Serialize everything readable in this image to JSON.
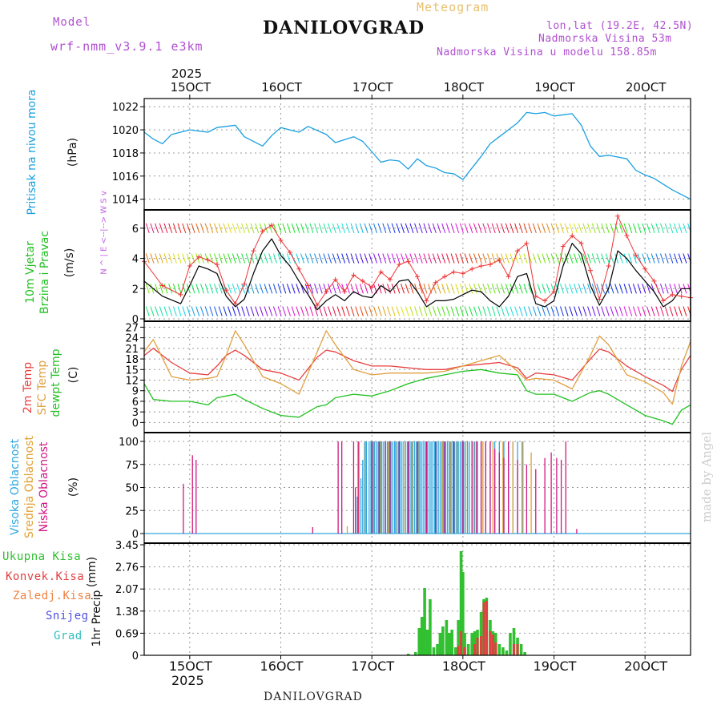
{
  "header": {
    "model_label": "Model",
    "model_name": "wrf-nmm_v3.9.1 e3km",
    "station": "DANILOVGRAD",
    "chart_kind": "Meteogram",
    "lonlat": "lon,lat (19.2E, 42.5N)",
    "elevation": "Nadmorska Visina 53m",
    "model_elevation": "Nadmorska Visina u modelu 158.85m"
  },
  "footer": {
    "station": "DANILOVGRAD",
    "credit": "made by Angel",
    "year_top": "2025",
    "year_bottom": "2025"
  },
  "colors": {
    "pressure": "#1aa0e0",
    "wind_speed": "#000000",
    "wind_gust": "#ee3333",
    "temp_2m": "#e84040",
    "temp_sfc": "#e0a040",
    "temp_dewpt": "#20c020",
    "cloud_high": "#30a8e0",
    "cloud_mid": "#e0a030",
    "cloud_low": "#d01880",
    "precip_total": "#30c030",
    "precip_conv": "#e04040",
    "precip_frozen": "#f08040",
    "precip_snow": "#5050e0",
    "precip_hail": "#30c0c0"
  },
  "chart_data": [
    {
      "type": "line",
      "panel": "pressure",
      "ylabel_name": "Pritisak na nivou mora",
      "ylabel_unit": "(hPa)",
      "xticks": [
        "15OCT",
        "16OCT",
        "17OCT",
        "18OCT",
        "19OCT",
        "20OCT"
      ],
      "yticks": [
        1014,
        1016,
        1018,
        1020,
        1022
      ],
      "ylim": [
        1013.7,
        1022.5
      ],
      "xlim": [
        14.5,
        20.5
      ],
      "series": [
        {
          "name": "Pritisak na nivou mora",
          "x": [
            14.5,
            14.6,
            14.7,
            14.8,
            15.0,
            15.2,
            15.3,
            15.5,
            15.6,
            15.8,
            15.9,
            16.0,
            16.2,
            16.3,
            16.5,
            16.6,
            16.8,
            16.9,
            17.0,
            17.1,
            17.2,
            17.3,
            17.4,
            17.5,
            17.6,
            17.7,
            17.8,
            17.9,
            18.0,
            18.1,
            18.2,
            18.3,
            18.4,
            18.6,
            18.7,
            18.8,
            18.9,
            19.0,
            19.1,
            19.2,
            19.3,
            19.4,
            19.5,
            19.6,
            19.8,
            19.9,
            20.0,
            20.1,
            20.2,
            20.3,
            20.5
          ],
          "y": [
            1019.8,
            1019.2,
            1018.8,
            1019.6,
            1020.0,
            1019.8,
            1020.2,
            1020.4,
            1019.4,
            1018.6,
            1019.5,
            1020.2,
            1019.8,
            1020.3,
            1019.6,
            1018.9,
            1019.4,
            1019.0,
            1018.1,
            1017.2,
            1017.4,
            1017.3,
            1016.6,
            1017.5,
            1016.9,
            1016.7,
            1016.3,
            1016.2,
            1015.7,
            1016.7,
            1017.7,
            1018.8,
            1019.4,
            1020.6,
            1021.5,
            1021.4,
            1021.5,
            1021.2,
            1021.3,
            1021.4,
            1020.4,
            1018.6,
            1017.7,
            1017.8,
            1017.5,
            1016.5,
            1016.1,
            1015.8,
            1015.3,
            1014.8,
            1014.0
          ]
        }
      ]
    },
    {
      "type": "line",
      "panel": "wind",
      "ylabel_name": "10m Vjetar",
      "ylabel_name2": "Brzina i Pravac",
      "ylabel_unit": "(m/s)",
      "compass": "N ^ | E <--|--> W S v",
      "yticks": [
        0,
        2,
        4,
        6
      ],
      "ylim": [
        0,
        7
      ],
      "xlim": [
        14.5,
        20.5
      ],
      "series": [
        {
          "name": "Brzina vjetra",
          "x": [
            14.5,
            14.7,
            14.9,
            15.0,
            15.1,
            15.2,
            15.3,
            15.4,
            15.5,
            15.6,
            15.7,
            15.8,
            15.9,
            16.0,
            16.1,
            16.2,
            16.3,
            16.4,
            16.5,
            16.6,
            16.7,
            16.8,
            16.9,
            17.0,
            17.1,
            17.2,
            17.3,
            17.4,
            17.5,
            17.6,
            17.7,
            17.8,
            17.9,
            18.0,
            18.1,
            18.2,
            18.3,
            18.4,
            18.5,
            18.6,
            18.7,
            18.8,
            18.9,
            19.0,
            19.1,
            19.2,
            19.3,
            19.4,
            19.5,
            19.6,
            19.7,
            19.8,
            19.9,
            20.0,
            20.1,
            20.2,
            20.3,
            20.4,
            20.5
          ],
          "y": [
            2.5,
            1.5,
            1.0,
            2.2,
            3.5,
            3.3,
            3.0,
            1.5,
            0.8,
            1.3,
            3.0,
            4.5,
            5.3,
            4.2,
            3.5,
            2.5,
            1.6,
            0.6,
            1.2,
            1.6,
            1.2,
            1.8,
            1.5,
            1.4,
            2.2,
            1.8,
            2.5,
            2.6,
            1.8,
            0.8,
            1.2,
            1.2,
            1.3,
            1.6,
            1.9,
            1.8,
            1.2,
            0.8,
            1.5,
            2.8,
            3.0,
            1.0,
            0.8,
            1.2,
            3.5,
            5.0,
            4.3,
            2.2,
            0.9,
            2.0,
            4.5,
            4.0,
            3.2,
            2.5,
            1.8,
            0.8,
            1.2,
            2.0,
            2.0
          ]
        },
        {
          "name": "Udari vjetra",
          "x": [
            14.5,
            14.7,
            14.9,
            15.0,
            15.1,
            15.2,
            15.3,
            15.4,
            15.5,
            15.6,
            15.7,
            15.8,
            15.9,
            16.0,
            16.1,
            16.2,
            16.3,
            16.4,
            16.5,
            16.6,
            16.7,
            16.8,
            16.9,
            17.0,
            17.1,
            17.2,
            17.3,
            17.4,
            17.5,
            17.6,
            17.7,
            17.8,
            17.9,
            18.0,
            18.1,
            18.2,
            18.3,
            18.4,
            18.5,
            18.6,
            18.7,
            18.8,
            18.9,
            19.0,
            19.1,
            19.2,
            19.3,
            19.4,
            19.5,
            19.6,
            19.7,
            19.8,
            19.9,
            20.0,
            20.1,
            20.2,
            20.3,
            20.4,
            20.5
          ],
          "y": [
            3.8,
            2.2,
            1.6,
            3.5,
            4.1,
            3.9,
            3.6,
            1.9,
            1.0,
            2.3,
            4.5,
            5.8,
            6.2,
            5.2,
            4.4,
            3.3,
            2.2,
            0.9,
            1.8,
            2.6,
            1.8,
            2.9,
            2.5,
            2.1,
            3.1,
            2.6,
            3.6,
            3.8,
            2.8,
            1.2,
            2.4,
            2.8,
            3.1,
            3.0,
            3.3,
            3.5,
            3.6,
            3.9,
            2.8,
            4.5,
            5.0,
            1.5,
            1.2,
            1.8,
            4.8,
            5.5,
            5.0,
            3.2,
            1.3,
            3.5,
            6.8,
            5.5,
            4.2,
            3.3,
            2.5,
            1.2,
            1.6,
            1.5,
            1.4
          ]
        }
      ]
    },
    {
      "type": "line",
      "panel": "temperature",
      "ylabel_name": "2m Temp",
      "ylabel_name2": "SFC Temp",
      "ylabel_name3": "dewpt Temp",
      "ylabel_unit": "(C)",
      "yticks": [
        0,
        3,
        6,
        9,
        12,
        15,
        18,
        21,
        24,
        27
      ],
      "ylim": [
        -1.5,
        28
      ],
      "xlim": [
        14.5,
        20.5
      ],
      "series": [
        {
          "name": "2m Temp",
          "x": [
            14.5,
            14.6,
            14.8,
            15.0,
            15.2,
            15.3,
            15.4,
            15.5,
            15.6,
            15.8,
            16.0,
            16.2,
            16.4,
            16.5,
            16.6,
            16.8,
            17.0,
            17.2,
            17.4,
            17.6,
            17.8,
            18.0,
            18.2,
            18.4,
            18.6,
            18.7,
            18.8,
            19.0,
            19.2,
            19.4,
            19.5,
            19.6,
            19.8,
            20.0,
            20.2,
            20.3,
            20.4,
            20.5
          ],
          "y": [
            19,
            21,
            17,
            14,
            13.5,
            16,
            19,
            20.5,
            19,
            15,
            14,
            12,
            18.5,
            20.5,
            20,
            17.5,
            16,
            16,
            15.5,
            15,
            15,
            16,
            16.5,
            17,
            15.5,
            12.5,
            14,
            13.5,
            12,
            18,
            20.8,
            20,
            16,
            13,
            10.5,
            8.8,
            15,
            19
          ]
        },
        {
          "name": "SFC Temp",
          "x": [
            14.5,
            14.6,
            14.8,
            15.0,
            15.2,
            15.3,
            15.4,
            15.5,
            15.6,
            15.8,
            16.0,
            16.2,
            16.4,
            16.5,
            16.6,
            16.8,
            17.0,
            17.2,
            17.4,
            17.6,
            17.8,
            18.0,
            18.2,
            18.4,
            18.6,
            18.7,
            18.8,
            19.0,
            19.2,
            19.4,
            19.5,
            19.6,
            19.8,
            20.0,
            20.2,
            20.3,
            20.4,
            20.5
          ],
          "y": [
            20,
            23.5,
            13,
            12,
            12.5,
            13,
            19,
            26,
            22,
            13,
            11,
            8,
            20,
            26,
            22,
            15,
            13.5,
            14,
            14,
            14,
            14.5,
            16,
            17.5,
            19,
            14.5,
            12,
            12.5,
            12,
            9.5,
            19,
            24.5,
            22,
            13.5,
            11.5,
            8.5,
            5.2,
            16,
            23
          ]
        },
        {
          "name": "dewpt Temp",
          "x": [
            14.5,
            14.6,
            14.8,
            15.0,
            15.2,
            15.3,
            15.4,
            15.5,
            15.6,
            15.8,
            16.0,
            16.2,
            16.4,
            16.5,
            16.6,
            16.8,
            17.0,
            17.2,
            17.4,
            17.6,
            17.8,
            18.0,
            18.2,
            18.4,
            18.6,
            18.7,
            18.8,
            19.0,
            19.2,
            19.4,
            19.5,
            19.6,
            19.8,
            20.0,
            20.2,
            20.3,
            20.4,
            20.5
          ],
          "y": [
            11,
            6.5,
            6,
            6,
            5,
            7,
            7.5,
            8,
            6.5,
            4,
            2,
            1.5,
            4.5,
            5,
            7,
            8,
            7.5,
            9,
            11,
            12.5,
            13.5,
            14.5,
            15,
            14,
            13.5,
            9,
            8,
            8,
            6,
            8.5,
            9,
            8,
            5,
            2,
            0.5,
            -0.5,
            3.5,
            5
          ]
        }
      ]
    },
    {
      "type": "bar",
      "panel": "clouds",
      "ylabel_name": "Visoka Oblacnost",
      "ylabel_name2": "Srednja Oblacnost",
      "ylabel_name3": "Niska Oblacnost",
      "ylabel_unit": "(%)",
      "yticks": [
        0,
        25,
        50,
        75,
        100
      ],
      "ylim": [
        0,
        100
      ],
      "xlim": [
        14.5,
        20.5
      ],
      "high_x": [
        16.84,
        16.88,
        16.9,
        16.92,
        16.94,
        16.97,
        16.99,
        17.01,
        17.03,
        17.05,
        17.07,
        17.09,
        17.11,
        17.13,
        17.15,
        17.17,
        17.19,
        17.21,
        17.23,
        17.25,
        17.27,
        17.29,
        17.31,
        17.33,
        17.35,
        17.37,
        17.39,
        17.41,
        17.43,
        17.45,
        17.47,
        17.49,
        17.51,
        17.53,
        17.55,
        17.57,
        17.59,
        17.61,
        17.63,
        17.65,
        17.67,
        17.69,
        17.71,
        17.73,
        17.75,
        17.77,
        17.79,
        17.81,
        17.83,
        17.85,
        17.87,
        17.89,
        17.91,
        17.93,
        17.95,
        17.97,
        17.99,
        18.01,
        18.03,
        18.05,
        18.07,
        18.1,
        18.13,
        18.16,
        18.2,
        18.25,
        18.3,
        18.35,
        18.4,
        18.45,
        18.5,
        18.55,
        18.6,
        18.65
      ],
      "high_y": [
        40,
        60,
        80,
        100,
        100,
        100,
        100,
        100,
        100,
        100,
        100,
        100,
        100,
        100,
        100,
        100,
        100,
        100,
        100,
        100,
        100,
        100,
        100,
        100,
        100,
        100,
        100,
        100,
        100,
        100,
        100,
        100,
        100,
        100,
        100,
        100,
        100,
        100,
        100,
        100,
        100,
        100,
        100,
        100,
        100,
        100,
        100,
        100,
        100,
        100,
        100,
        100,
        100,
        100,
        100,
        100,
        100,
        100,
        100,
        100,
        100,
        100,
        100,
        100,
        100,
        100,
        100,
        100,
        100,
        100,
        100,
        100,
        100,
        100
      ],
      "mid_x": [
        16.73,
        16.86,
        16.93,
        17.02,
        17.1,
        17.18,
        17.26,
        17.35,
        17.44,
        17.52,
        17.6,
        17.7,
        17.78,
        17.86,
        17.94,
        18.03,
        18.12,
        18.22,
        18.33,
        18.44,
        18.55,
        18.66,
        18.75
      ],
      "mid_y": [
        8,
        100,
        100,
        100,
        100,
        100,
        100,
        100,
        100,
        100,
        100,
        100,
        100,
        100,
        100,
        100,
        100,
        100,
        100,
        100,
        100,
        100,
        88
      ],
      "low_x": [
        14.93,
        15.03,
        15.07,
        16.35,
        16.63,
        16.67,
        16.8,
        16.82,
        16.85,
        17.0,
        17.08,
        17.15,
        17.2,
        17.3,
        17.4,
        17.5,
        17.6,
        17.7,
        17.8,
        17.9,
        18.0,
        18.1,
        18.15,
        18.2,
        18.25,
        18.3,
        18.35,
        18.4,
        18.45,
        18.5,
        18.6,
        18.7,
        18.8,
        18.9,
        18.97,
        19.03,
        19.08,
        19.13,
        19.25
      ],
      "low_y": [
        54,
        85,
        80,
        7,
        100,
        100,
        100,
        50,
        100,
        100,
        100,
        100,
        100,
        100,
        100,
        100,
        100,
        100,
        100,
        100,
        100,
        100,
        100,
        100,
        100,
        100,
        92,
        88,
        82,
        100,
        80,
        75,
        70,
        82,
        88,
        82,
        80,
        100,
        5
      ]
    },
    {
      "type": "bar",
      "panel": "precip",
      "ylabel_name": "1hr Precip",
      "ylabel_unit": "(mm)",
      "legend": [
        "Ukupna Kisa",
        "Konvek.Kisa",
        "Zaledj.Kisa",
        "Snijeg",
        "Grad"
      ],
      "yticks": [
        0,
        0.69,
        1.38,
        2.07,
        2.76,
        3.45
      ],
      "ylim": [
        0,
        3.45
      ],
      "xlim": [
        14.5,
        20.5
      ],
      "total_x": [
        17.4,
        17.48,
        17.52,
        17.55,
        17.58,
        17.61,
        17.64,
        17.68,
        17.72,
        17.75,
        17.78,
        17.82,
        17.85,
        17.88,
        17.92,
        17.95,
        17.98,
        18.0,
        18.02,
        18.06,
        18.1,
        18.13,
        18.16,
        18.2,
        18.23,
        18.26,
        18.3,
        18.33,
        18.36,
        18.4,
        18.44,
        18.48,
        18.52,
        18.56,
        18.6,
        18.64,
        18.68
      ],
      "total_y": [
        0.05,
        0.1,
        0.85,
        1.2,
        2.1,
        0.8,
        1.75,
        0.25,
        0.35,
        0.7,
        0.9,
        1.1,
        0.7,
        0.8,
        0.25,
        1.1,
        3.25,
        2.6,
        0.7,
        0.35,
        0.7,
        0.75,
        0.8,
        1.35,
        1.75,
        1.8,
        1.1,
        0.75,
        0.7,
        0.35,
        0.25,
        0.15,
        0.7,
        0.85,
        0.55,
        0.35,
        0.1
      ],
      "conv_x": [
        17.95,
        17.98,
        18.02,
        18.13,
        18.16,
        18.2,
        18.23,
        18.26,
        18.3,
        18.33,
        18.36,
        18.56,
        18.6
      ],
      "conv_y": [
        0.3,
        0.75,
        0.25,
        0.35,
        0.55,
        0.6,
        1.65,
        1.7,
        0.75,
        0.65,
        0.4,
        0.35,
        0.35
      ]
    }
  ]
}
